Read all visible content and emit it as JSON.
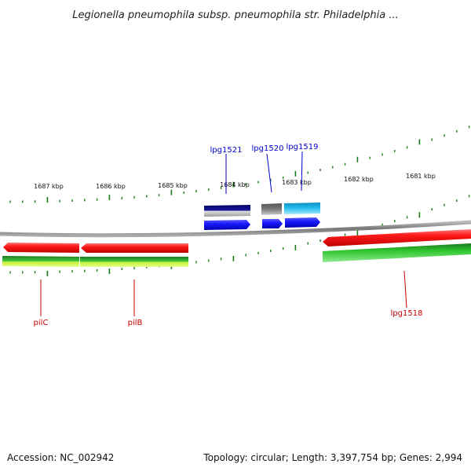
{
  "title": "Legionella pneumophila subsp. pneumophila str. Philadelphia ...",
  "footer": {
    "accession": "Accession: NC_002942",
    "summary": "Topology: circular; Length: 3,397,754 bp; Genes: 2,994"
  },
  "kbp_labels": [
    "1687 kbp",
    "1686 kbp",
    "1685 kbp",
    "1684 kbp",
    "1683 kbp",
    "1682 kbp",
    "1681 kbp"
  ],
  "genes_forward": [
    {
      "name": "lpg1521",
      "color": "#1a1aff"
    },
    {
      "name": "lpg1520",
      "color": "#1a1aff"
    },
    {
      "name": "lpg1519",
      "color": "#1a1aff"
    }
  ],
  "genes_reverse": [
    {
      "name": "pilC",
      "color": "#ff1a1a"
    },
    {
      "name": "pilB",
      "color": "#ff1a1a"
    },
    {
      "name": "lpg1518",
      "color": "#ff1a1a"
    }
  ],
  "colors": {
    "backbone": "#888888",
    "tick": "#1a7a1a",
    "forward_cds": "#1a1aff",
    "reverse_cds": "#ff1a1a",
    "gc_bar": "#33cc33",
    "cog_dark": "#0a0a8a",
    "cog_gray": "#6d6d6d",
    "cog_cyan": "#22bbee",
    "yellow_green": "#c6f03c"
  }
}
